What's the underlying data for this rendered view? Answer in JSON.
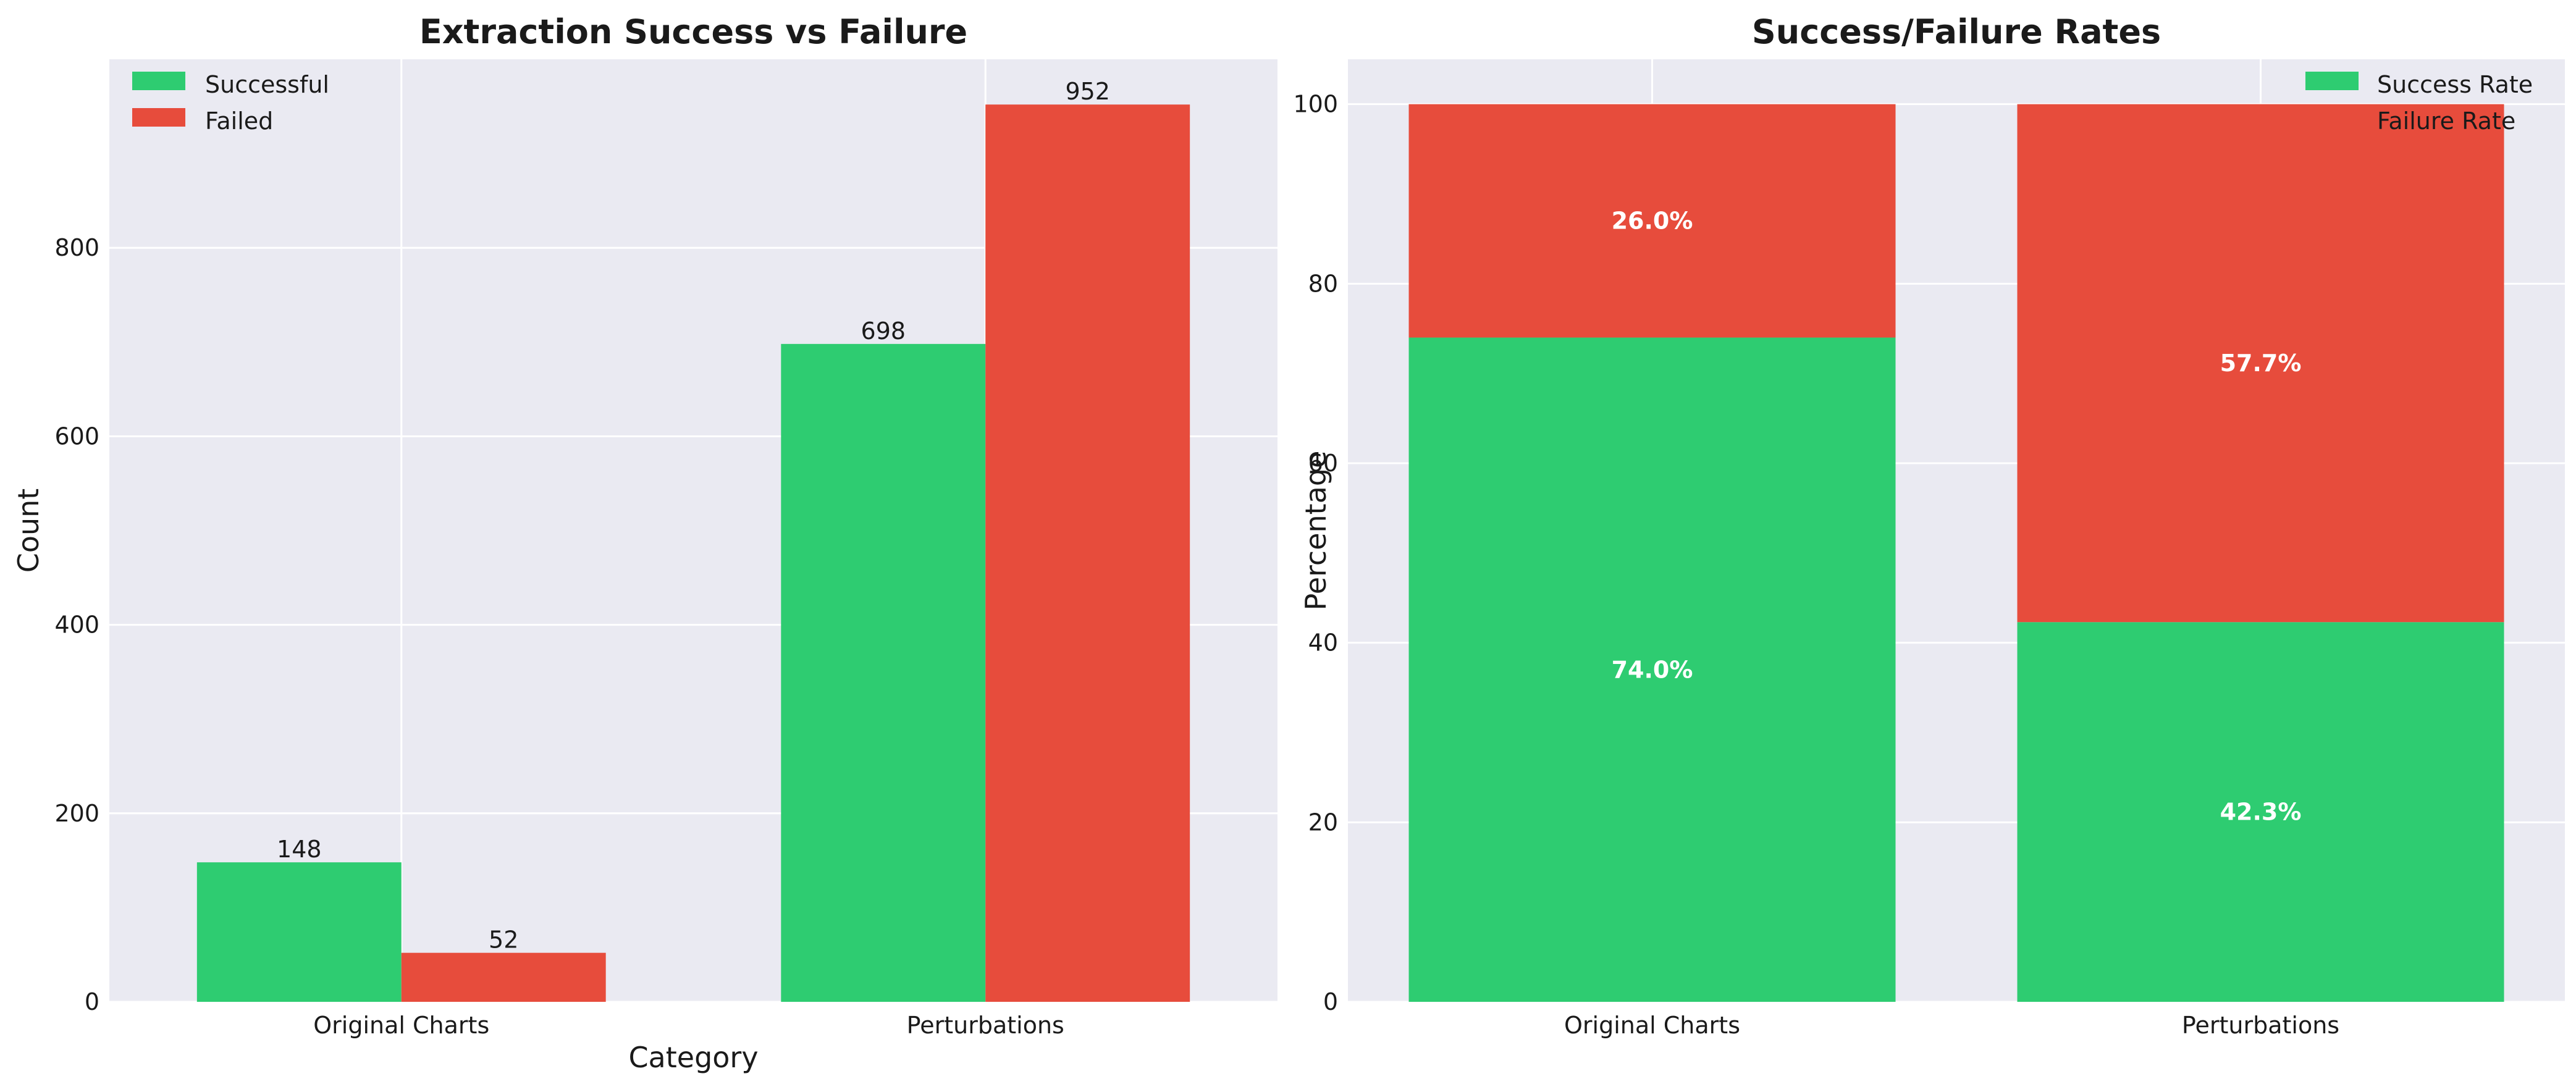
{
  "chart_data": [
    {
      "type": "bar",
      "title": "Extraction Success vs Failure",
      "xlabel": "Category",
      "ylabel": "Count",
      "categories": [
        "Original Charts",
        "Perturbations"
      ],
      "series": [
        {
          "name": "Successful",
          "values": [
            148,
            698
          ],
          "color": "#2ecc71"
        },
        {
          "name": "Failed",
          "values": [
            52,
            952
          ],
          "color": "#e74c3c"
        }
      ],
      "value_labels": [
        [
          "148",
          "698"
        ],
        [
          "52",
          "952"
        ]
      ],
      "ylim": [
        0,
        1000
      ],
      "yticks": [
        0,
        200,
        400,
        600,
        800
      ],
      "ytick_labels": [
        "0",
        "200",
        "400",
        "600",
        "800"
      ],
      "grid": true,
      "legend": "top-left"
    },
    {
      "type": "bar",
      "stacked": true,
      "title": "Success/Failure Rates",
      "xlabel": "",
      "ylabel": "Percentage",
      "categories": [
        "Original Charts",
        "Perturbations"
      ],
      "series": [
        {
          "name": "Success Rate",
          "values": [
            74.0,
            42.3
          ],
          "color": "#2ecc71"
        },
        {
          "name": "Failure Rate",
          "values": [
            26.0,
            57.7
          ],
          "color": "#e74c3c"
        }
      ],
      "value_labels": [
        [
          "74.0%",
          "42.3%"
        ],
        [
          "26.0%",
          "57.7%"
        ]
      ],
      "ylim": [
        0,
        105
      ],
      "yticks": [
        0,
        20,
        40,
        60,
        80,
        100
      ],
      "ytick_labels": [
        "0",
        "20",
        "40",
        "60",
        "80",
        "100"
      ],
      "grid": true,
      "legend": "top-right"
    }
  ],
  "colors": {
    "plot_bg": "#eaeaf2",
    "grid": "#ffffff",
    "success": "#2ecc71",
    "failure": "#e74c3c"
  }
}
